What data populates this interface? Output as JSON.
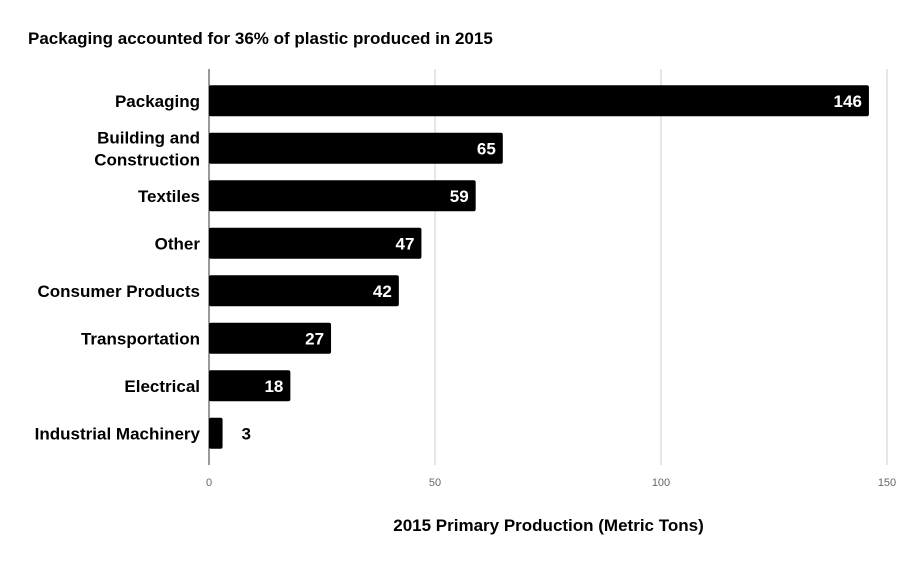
{
  "chart_data": {
    "type": "bar",
    "orientation": "horizontal",
    "title": "Packaging accounted for 36% of plastic produced in 2015",
    "xlabel": "2015 Primary Production (Metric Tons)",
    "ylabel": "",
    "categories": [
      [
        "Packaging"
      ],
      [
        "Building and",
        "Construction"
      ],
      [
        "Textiles"
      ],
      [
        "Other"
      ],
      [
        "Consumer Products"
      ],
      [
        "Transportation"
      ],
      [
        "Electrical"
      ],
      [
        "Industrial Machinery"
      ]
    ],
    "values": [
      146,
      65,
      59,
      47,
      42,
      27,
      18,
      3
    ],
    "xlim": [
      0,
      150
    ],
    "xticks": [
      0,
      50,
      100,
      150
    ],
    "grid": true,
    "colors": {
      "bar": "#000000",
      "label_inside": "#ffffff",
      "label_outside": "#000000",
      "grid": "#cccccc",
      "axis": "#333333"
    }
  }
}
